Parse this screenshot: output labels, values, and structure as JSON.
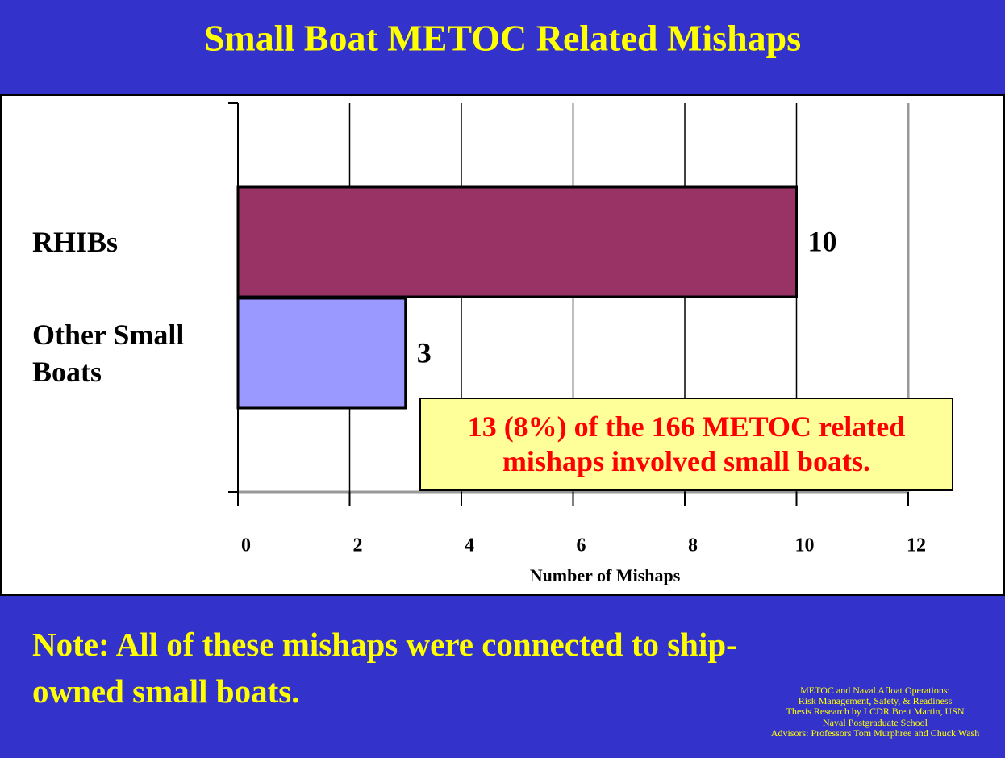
{
  "chart_data": {
    "type": "bar",
    "orientation": "horizontal",
    "title": "Small Boat METOC Related Mishaps",
    "categories": [
      "RHIBs",
      "Other Small Boats"
    ],
    "values": [
      10,
      3
    ],
    "colors": [
      "#993366",
      "#9999ff"
    ],
    "xlim": [
      0,
      12
    ],
    "xticks": [
      0,
      2,
      4,
      6,
      8,
      10,
      12
    ],
    "xlabel": "Number of Mishaps",
    "grid": true,
    "annotation": "13 (8%) of the 166 METOC related mishaps involved small boats."
  },
  "note": "Note: All of these mishaps were connected to ship-owned small boats.",
  "credits": [
    "METOC and Naval Afloat Operations:",
    "Risk Management, Safety, & Readiness",
    "Thesis Research by LCDR Brett Martin, USN",
    "Naval Postgraduate School",
    "Advisors: Professors Tom Murphree and Chuck Wash"
  ]
}
